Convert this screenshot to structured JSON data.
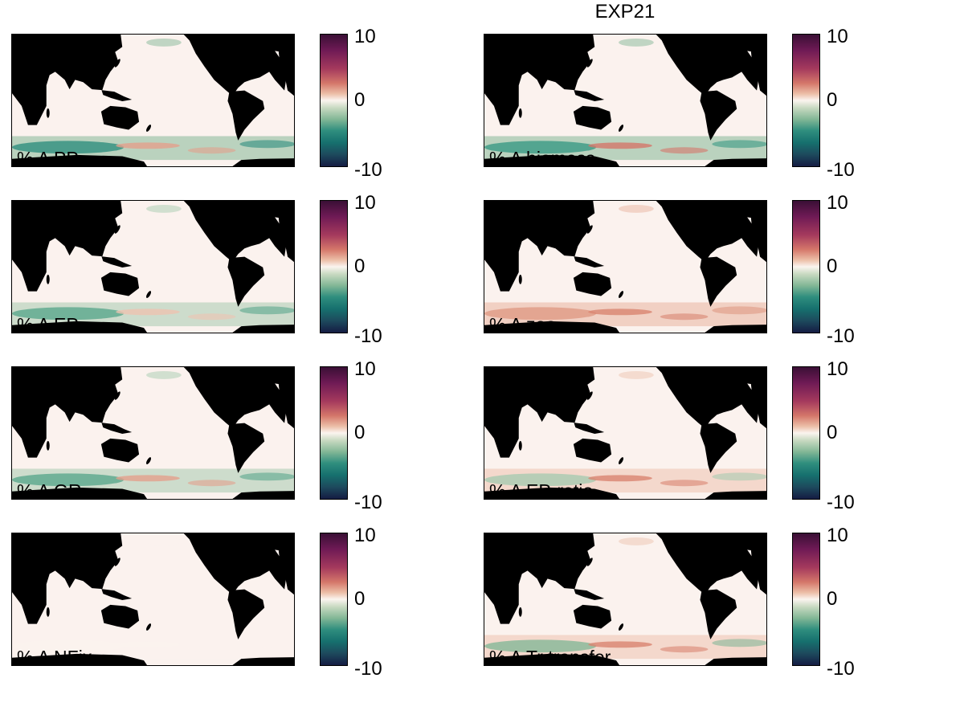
{
  "figure": {
    "title": "EXP21"
  },
  "colorbar": {
    "ticks": [
      "10",
      "0",
      "-10"
    ],
    "range": [
      -10,
      10
    ],
    "colormap": "diverging green-white-red/purple"
  },
  "colors": {
    "land": "#000000",
    "ocean_zero": "#fbf2ee",
    "negative": "#2f8e7e",
    "positive": "#d5776a"
  },
  "panels": [
    {
      "label": "% Δ PP",
      "southern_band": [
        "#2f8e7e",
        "#85b897",
        "#e3a08c"
      ]
    },
    {
      "label": "% Δ biomass",
      "southern_band": [
        "#3a9a84",
        "#85b897",
        "#d5776a"
      ]
    },
    {
      "label": "% Δ EP",
      "southern_band": [
        "#5aa78c",
        "#a8cbb0",
        "#eec3b0"
      ]
    },
    {
      "label": "% Δ zoo",
      "southern_band": [
        "#e09a84",
        "#eab4a0",
        "#d98571"
      ]
    },
    {
      "label": "% Δ GR",
      "southern_band": [
        "#5aa78c",
        "#a8cbb0",
        "#e3a08c"
      ]
    },
    {
      "label": "% Δ EP-ratio",
      "southern_band": [
        "#a8cbb0",
        "#eec3b0",
        "#d98571"
      ]
    },
    {
      "label": "% Δ NFix",
      "southern_band": [
        "#fbf2ee",
        "#fbf2ee",
        "#fbf2ee"
      ]
    },
    {
      "label": "% Δ Tr transfer",
      "southern_band": [
        "#85b897",
        "#eec3b0",
        "#d98571"
      ]
    }
  ]
}
